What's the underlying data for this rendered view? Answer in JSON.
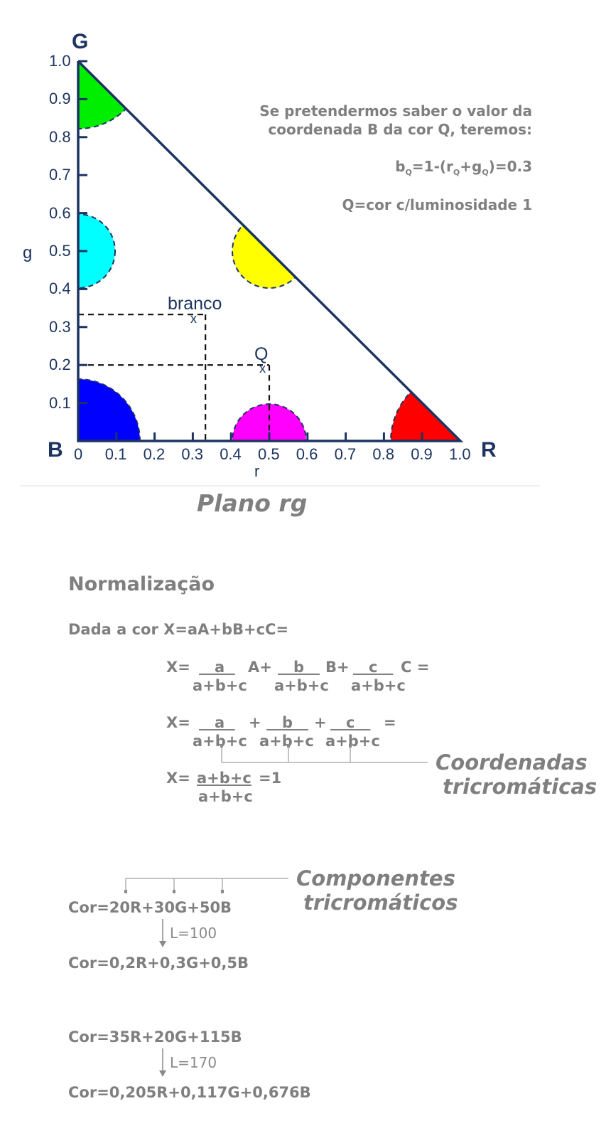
{
  "diagram": {
    "axis_letters": {
      "g_top": "G",
      "b_origin": "B",
      "r_right": "R"
    },
    "x_axis_label": "r",
    "y_axis_label": "g",
    "x_ticks": [
      "0",
      "0.1",
      "0.2",
      "0.3",
      "0.4",
      "0.5",
      "0.6",
      "0.7",
      "0.8",
      "0.9",
      "1.0"
    ],
    "y_ticks": [
      "0.1",
      "0.2",
      "0.3",
      "0.4",
      "0.5",
      "0.6",
      "0.7",
      "0.8",
      "0.9",
      "1.0"
    ],
    "points": {
      "white": {
        "label": "branco",
        "marker": "x",
        "r": 0.333,
        "g": 0.333
      },
      "q": {
        "label": "Q",
        "marker": "x",
        "r": 0.5,
        "g": 0.2
      }
    },
    "color_regions": [
      {
        "name": "green",
        "color": "#00ee00",
        "r": 0,
        "g": 1
      },
      {
        "name": "cyan",
        "color": "#00ffff",
        "r": 0,
        "g": 0.5
      },
      {
        "name": "yellow",
        "color": "#ffff00",
        "r": 0.5,
        "g": 0.5
      },
      {
        "name": "blue",
        "color": "#0000ff",
        "r": 0,
        "g": 0
      },
      {
        "name": "magenta",
        "color": "#ff00ff",
        "r": 0.5,
        "g": 0
      },
      {
        "name": "red",
        "color": "#ff0000",
        "r": 1,
        "g": 0
      }
    ],
    "line_color": "#1d3461",
    "title": "Plano rg"
  },
  "notes": {
    "line1": "Se pretendermos saber o valor da",
    "line2": "coordenada B da cor Q, teremos:",
    "formula": {
      "b": "b",
      "sub1": "Q",
      "mid1": "=1-(r",
      "sub2": "Q",
      "mid2": "+g",
      "sub3": "Q",
      "end": ")=0.3"
    },
    "luminosity": "Q=cor c/luminosidade 1"
  },
  "normalization": {
    "heading": "Normalização",
    "given": "Dada a cor X=aA+bB+cC=",
    "eq1": {
      "lhs": "X=",
      "n1": "a",
      "t1": "A+",
      "n2": "b",
      "t2": "B+",
      "n3": "c",
      "t3": "C =",
      "den": "a+b+c"
    },
    "eq2": {
      "lhs": "X=",
      "n1": "a",
      "t1": "+",
      "n2": "b",
      "t2": "+",
      "n3": "c",
      "t3": "=",
      "den": "a+b+c"
    },
    "eq3": {
      "lhs": "X=",
      "num": "a+b+c",
      "rhs": "=1",
      "den": "a+b+c"
    },
    "label_coords_1": "Coordenadas",
    "label_coords_2": "tricromáticas"
  },
  "examples": {
    "label_comp_1": "Componentes",
    "label_comp_2": "tricromáticos",
    "ex1": {
      "before": "Cor=20R+30G+50B",
      "luminance": "L=100",
      "after": "Cor=0,2R+0,3G+0,5B"
    },
    "ex2": {
      "before": "Cor=35R+20G+115B",
      "luminance": "L=170",
      "after": "Cor=0,205R+0,117G+0,676B"
    }
  }
}
